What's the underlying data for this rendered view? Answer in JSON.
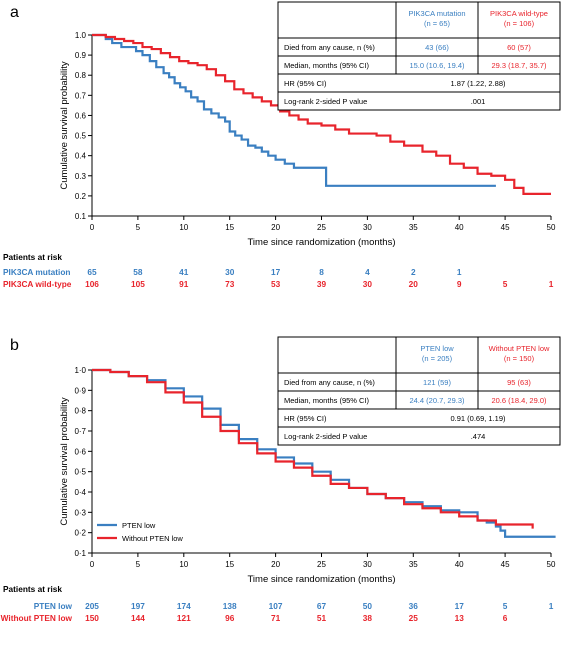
{
  "colors": {
    "blue": "#3a7fc1",
    "red": "#e8242c",
    "black": "#000000"
  },
  "chart_data": [
    {
      "panel": "a",
      "type": "line",
      "xlabel": "Time since randomization (months)",
      "ylabel": "Cumulative survival probability",
      "xlim": [
        0,
        50
      ],
      "ylim": [
        0.1,
        1.0
      ],
      "xticks": [
        "0",
        "5",
        "10",
        "15",
        "20",
        "25",
        "30",
        "35",
        "40",
        "45",
        "50"
      ],
      "yticks": [
        "0.1",
        "0.2",
        "0.3",
        "0.4",
        "0.5",
        "0.6",
        "0.7",
        "0.8",
        "0.9",
        "1.0"
      ],
      "series": [
        {
          "name": "PIK3CA mutation",
          "color": "#3a7fc1",
          "x": [
            0,
            1.5,
            2.2,
            3.2,
            4,
            4.8,
            5.5,
            6.3,
            7,
            7.8,
            8.4,
            9,
            9.6,
            10.2,
            10.8,
            11.5,
            12.2,
            13,
            13.8,
            14.5,
            15,
            15.6,
            16.3,
            17,
            17.8,
            18.5,
            19.2,
            20,
            21,
            22,
            23.5,
            25.5,
            44
          ],
          "y": [
            1.0,
            0.98,
            0.96,
            0.94,
            0.94,
            0.92,
            0.9,
            0.87,
            0.84,
            0.81,
            0.79,
            0.76,
            0.74,
            0.72,
            0.69,
            0.67,
            0.63,
            0.61,
            0.59,
            0.57,
            0.52,
            0.5,
            0.48,
            0.45,
            0.44,
            0.42,
            0.4,
            0.38,
            0.36,
            0.34,
            0.34,
            0.25,
            0.25
          ]
        },
        {
          "name": "PIK3CA wild-type",
          "color": "#e8242c",
          "x": [
            0,
            1.5,
            2.5,
            3.5,
            4.5,
            5.5,
            6.5,
            7.5,
            8.5,
            9.5,
            10.5,
            11.5,
            12.5,
            13.5,
            14.5,
            15.5,
            16.5,
            17.5,
            18.5,
            19.5,
            20.5,
            21.5,
            22.5,
            23.5,
            25,
            26.5,
            28,
            29.5,
            31,
            32.5,
            34,
            36,
            37.5,
            39,
            40.5,
            42,
            43.5,
            45,
            46,
            47,
            50
          ],
          "y": [
            1.0,
            0.99,
            0.98,
            0.97,
            0.96,
            0.94,
            0.93,
            0.91,
            0.89,
            0.87,
            0.86,
            0.85,
            0.83,
            0.8,
            0.77,
            0.73,
            0.71,
            0.69,
            0.67,
            0.65,
            0.62,
            0.6,
            0.58,
            0.56,
            0.55,
            0.53,
            0.51,
            0.51,
            0.5,
            0.47,
            0.45,
            0.42,
            0.4,
            0.36,
            0.34,
            0.31,
            0.3,
            0.28,
            0.24,
            0.21,
            0.21
          ]
        }
      ],
      "table": {
        "headers": [
          "PIK3CA mutation\n(n = 65)",
          "PIK3CA wild-type\n(n = 106)"
        ],
        "rows": [
          {
            "label": "Died from any cause, n (%)",
            "values": [
              "43 (66)",
              "60 (57)"
            ]
          },
          {
            "label": "Median, months (95% CI)",
            "values": [
              "15.0 (10.6, 19.4)",
              "29.3 (18.7, 35.7)"
            ]
          },
          {
            "label": "HR (95% CI)",
            "value": "1.87 (1.22, 2.88)"
          },
          {
            "label": "Log-rank 2-sided P value",
            "value": ".001"
          }
        ]
      },
      "risk": {
        "title": "Patients at risk",
        "rows": [
          {
            "label": "PIK3CA mutation",
            "color": "#3a7fc1",
            "values": [
              "65",
              "58",
              "41",
              "30",
              "17",
              "8",
              "4",
              "2",
              "1"
            ]
          },
          {
            "label": "PIK3CA wild-type",
            "color": "#e8242c",
            "values": [
              "106",
              "105",
              "91",
              "73",
              "53",
              "39",
              "30",
              "20",
              "9",
              "5",
              "1"
            ]
          }
        ]
      }
    },
    {
      "panel": "b",
      "type": "line",
      "xlabel": "Time since randomization (months)",
      "ylabel": "Cumulative survival probability",
      "xlim": [
        0,
        50
      ],
      "ylim": [
        0.1,
        1.0
      ],
      "xticks": [
        "0",
        "5",
        "10",
        "15",
        "20",
        "25",
        "30",
        "35",
        "40",
        "45",
        "50"
      ],
      "yticks": [
        "0·1",
        "0·2",
        "0·3",
        "0·4",
        "0·5",
        "0·6",
        "0·7",
        "0·8",
        "0·9",
        "1·0"
      ],
      "series": [
        {
          "name": "PTEN low",
          "color": "#3a7fc1",
          "x": [
            0,
            2,
            4,
            6,
            8,
            10,
            12,
            14,
            16,
            18,
            20,
            22,
            24,
            26,
            28,
            30,
            32,
            34,
            36,
            38,
            40,
            42,
            43,
            44,
            44.5,
            45,
            47,
            48.5,
            50.5
          ],
          "y": [
            1.0,
            0.99,
            0.97,
            0.95,
            0.91,
            0.87,
            0.81,
            0.73,
            0.66,
            0.61,
            0.57,
            0.54,
            0.5,
            0.46,
            0.42,
            0.39,
            0.37,
            0.35,
            0.33,
            0.31,
            0.3,
            0.26,
            0.25,
            0.23,
            0.21,
            0.18,
            0.18,
            0.18,
            0.18
          ]
        },
        {
          "name": "Without PTEN low",
          "color": "#e8242c",
          "x": [
            0,
            2,
            4,
            6,
            8,
            10,
            12,
            14,
            16,
            18,
            20,
            22,
            24,
            26,
            28,
            30,
            32,
            34,
            36,
            38,
            40,
            42,
            44,
            46,
            48
          ],
          "y": [
            1.0,
            0.99,
            0.97,
            0.94,
            0.89,
            0.84,
            0.77,
            0.7,
            0.64,
            0.59,
            0.55,
            0.52,
            0.48,
            0.44,
            0.42,
            0.39,
            0.37,
            0.34,
            0.32,
            0.3,
            0.28,
            0.26,
            0.24,
            0.24,
            0.22
          ]
        }
      ],
      "legend": [
        "PTEN low",
        "Without PTEN low"
      ],
      "table": {
        "headers": [
          "PTEN low\n(n = 205)",
          "Without PTEN low\n(n = 150)"
        ],
        "rows": [
          {
            "label": "Died from any cause, n (%)",
            "values": [
              "121 (59)",
              "95 (63)"
            ]
          },
          {
            "label": "Median, months (95% CI)",
            "values": [
              "24.4 (20.7, 29.3)",
              "20.6 (18.4, 29.0)"
            ]
          },
          {
            "label": "HR (95% CI)",
            "value": "0.91 (0.69, 1.19)"
          },
          {
            "label": "Log-rank 2-sided P value",
            "value": ".474"
          }
        ]
      },
      "risk": {
        "title": "Patients at risk",
        "rows": [
          {
            "label": "PTEN low",
            "color": "#3a7fc1",
            "values": [
              "205",
              "197",
              "174",
              "138",
              "107",
              "67",
              "50",
              "36",
              "17",
              "5",
              "1"
            ]
          },
          {
            "label": "Without PTEN low",
            "color": "#e8242c",
            "values": [
              "150",
              "144",
              "121",
              "96",
              "71",
              "51",
              "38",
              "25",
              "13",
              "6"
            ]
          }
        ]
      }
    }
  ]
}
